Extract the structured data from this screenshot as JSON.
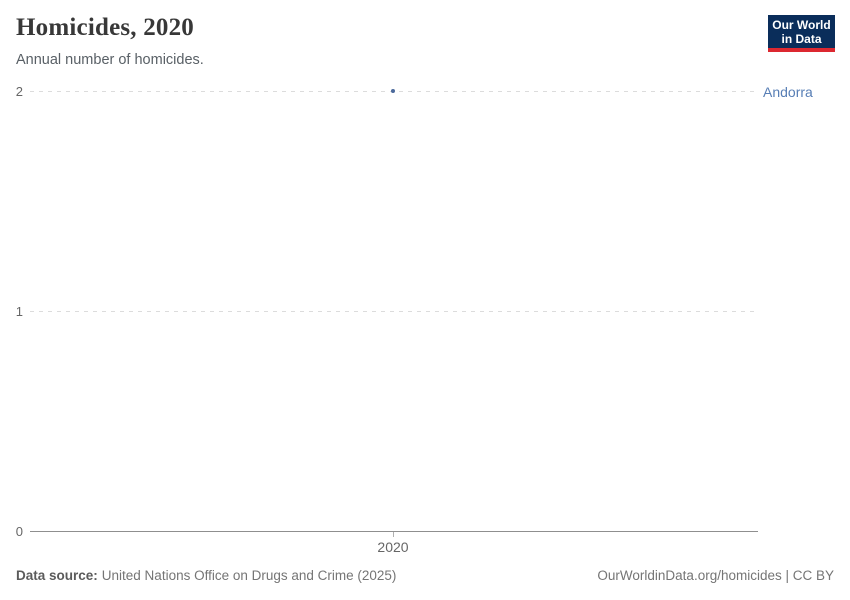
{
  "header": {
    "title": "Homicides, 2020",
    "subtitle": "Annual number of homicides.",
    "logo": {
      "line1": "Our World",
      "line2": "in Data"
    }
  },
  "chart_data": {
    "type": "scatter",
    "title": "Homicides, 2020",
    "subtitle": "Annual number of homicides.",
    "series": [
      {
        "name": "Andorra",
        "x": [
          2020
        ],
        "y": [
          2
        ]
      }
    ],
    "xlabel": "",
    "ylabel": "",
    "x_tick_labels": [
      "2020"
    ],
    "y_tick_labels": [
      "2",
      "1",
      "0"
    ],
    "ylim": [
      0,
      2
    ],
    "grid": "horizontal-dashed",
    "legend_position": "right-inline-label",
    "point_color": "#4c6a9c",
    "entity_label_color": "#577eb5"
  },
  "axes": {
    "y_tick_top": "2",
    "y_tick_mid": "1",
    "y_tick_bottom": "0",
    "x_tick": "2020"
  },
  "entity_label": "Andorra",
  "footer": {
    "source_prefix": "Data source:",
    "source_text": "United Nations Office on Drugs and Crime (2025)",
    "attribution": "OurWorldinData.org/homicides | CC BY"
  },
  "colors": {
    "logo_navy": "#0a2d5a",
    "logo_red": "#dc2830",
    "point_blue": "#4c6a9c",
    "entity_label_blue": "#577eb5",
    "gridline_gray": "#dcdcdc",
    "axis_gray": "#8f8f8f",
    "title_gray": "#383838",
    "subtitle_gray": "#596066",
    "footer_gray": "#757575"
  }
}
